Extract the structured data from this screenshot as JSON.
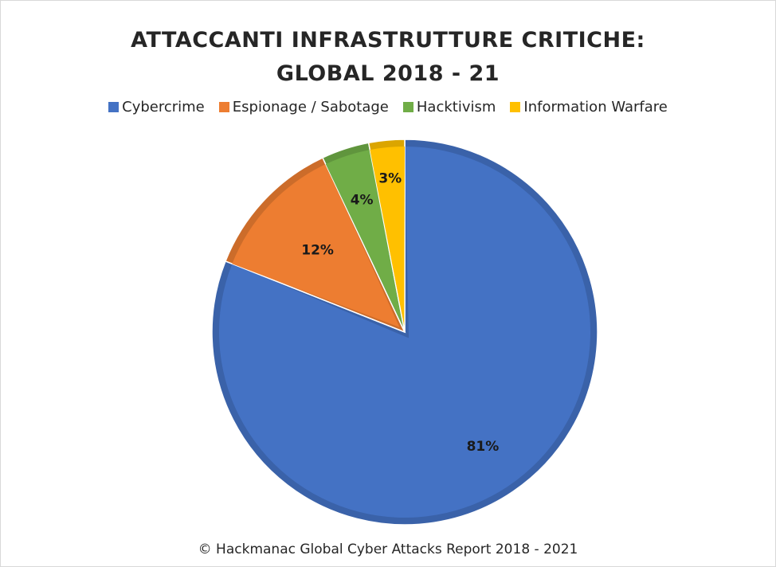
{
  "chart_data": {
    "type": "pie",
    "title_line1": "ATTACCANTI INFRASTRUTTURE CRITICHE:",
    "title_line2": "GLOBAL 2018 - 21",
    "categories": [
      "Cybercrime",
      "Espionage / Sabotage",
      "Hacktivism",
      "Information Warfare"
    ],
    "values": [
      81,
      12,
      4,
      3
    ],
    "labels": [
      "81%",
      "12%",
      "4%",
      "3%"
    ],
    "colors": [
      "#4472C4",
      "#ED7D31",
      "#70AD47",
      "#FFC000"
    ],
    "legend_position": "top"
  },
  "caption": "© Hackmanac Global Cyber Attacks Report 2018 - 2021"
}
